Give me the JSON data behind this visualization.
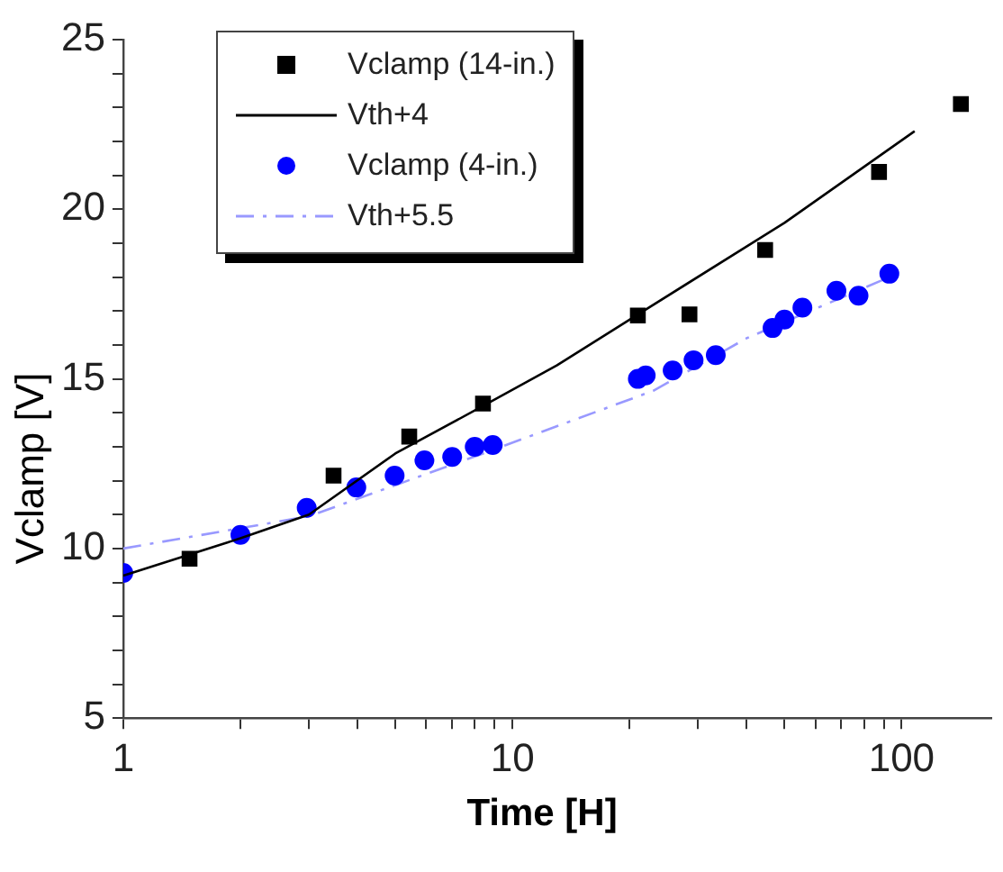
{
  "chart_data": {
    "type": "scatter",
    "xlabel": "Time [H]",
    "ylabel": "Vclamp [V]",
    "log": "x",
    "xlim": [
      1,
      170
    ],
    "xticks": [
      1,
      {
        "value": 2,
        "label": null
      },
      {
        "value": 3,
        "label": null
      },
      {
        "value": 4,
        "label": null
      },
      {
        "value": 5,
        "label": null
      },
      {
        "value": 6,
        "label": null
      },
      {
        "value": 7,
        "label": null
      },
      {
        "value": 8,
        "label": null
      },
      {
        "value": 9,
        "label": null
      },
      10,
      {
        "value": 20,
        "label": null
      },
      {
        "value": 30,
        "label": null
      },
      {
        "value": 40,
        "label": null
      },
      {
        "value": 50,
        "label": null
      },
      {
        "value": 60,
        "label": null
      },
      {
        "value": 70,
        "label": null
      },
      {
        "value": 80,
        "label": null
      },
      {
        "value": 90,
        "label": null
      },
      100
    ],
    "ylim": [
      5,
      25
    ],
    "yticks": [
      5,
      {
        "value": 6,
        "label": null
      },
      {
        "value": 7,
        "label": null
      },
      {
        "value": 8,
        "label": null
      },
      {
        "value": 9,
        "label": null
      },
      10,
      {
        "value": 11,
        "label": null
      },
      {
        "value": 12,
        "label": null
      },
      {
        "value": 13,
        "label": null
      },
      {
        "value": 14,
        "label": null
      },
      15,
      {
        "value": 16,
        "label": null
      },
      {
        "value": 17,
        "label": null
      },
      {
        "value": 18,
        "label": null
      },
      {
        "value": 19,
        "label": null
      },
      20,
      {
        "value": 21,
        "label": null
      },
      {
        "value": 22,
        "label": null
      },
      {
        "value": 23,
        "label": null
      },
      {
        "value": 24,
        "label": null
      },
      25
    ],
    "grid": false,
    "legend": "top left",
    "series": [
      {
        "name": "Vclamp (14-in.)",
        "type": "scatter",
        "color": "#000000",
        "marker": "square",
        "x": [
          1.48,
          3.47,
          5.43,
          8.4,
          21,
          28.5,
          44.6,
          87.5,
          142
        ],
        "values": [
          9.7,
          12.15,
          13.3,
          14.27,
          16.87,
          16.9,
          18.8,
          21.1,
          23.1
        ]
      },
      {
        "name": "Vth+4",
        "type": "line",
        "color": "#000000",
        "marker": "none",
        "line_style": "solid",
        "x": [
          1,
          2,
          3,
          5,
          8.4,
          13,
          21,
          50,
          108
        ],
        "values": [
          9.2,
          10.3,
          11.0,
          12.8,
          14.2,
          15.4,
          16.9,
          19.6,
          22.3
        ]
      },
      {
        "name": "Vclamp (4-in.)",
        "type": "scatter",
        "color": "#0000ff",
        "marker": "circle",
        "x": [
          1,
          2,
          2.96,
          3.97,
          4.98,
          5.94,
          7,
          8,
          8.9,
          21,
          22,
          25.8,
          29.2,
          33.3,
          46.6,
          50,
          55.6,
          68,
          77.5,
          93
        ],
        "values": [
          9.28,
          10.4,
          11.2,
          11.8,
          12.15,
          12.6,
          12.7,
          13.0,
          13.05,
          15.0,
          15.1,
          15.25,
          15.55,
          15.7,
          16.5,
          16.75,
          17.1,
          17.6,
          17.45,
          18.1
        ]
      },
      {
        "name": "Vth+5.5",
        "type": "line",
        "color": "#9999ff",
        "marker": "none",
        "line_style": "dashdot",
        "x": [
          1,
          3,
          8.4,
          23,
          40,
          93
        ],
        "values": [
          10.0,
          10.95,
          12.8,
          14.65,
          16.2,
          18.0
        ]
      }
    ]
  }
}
